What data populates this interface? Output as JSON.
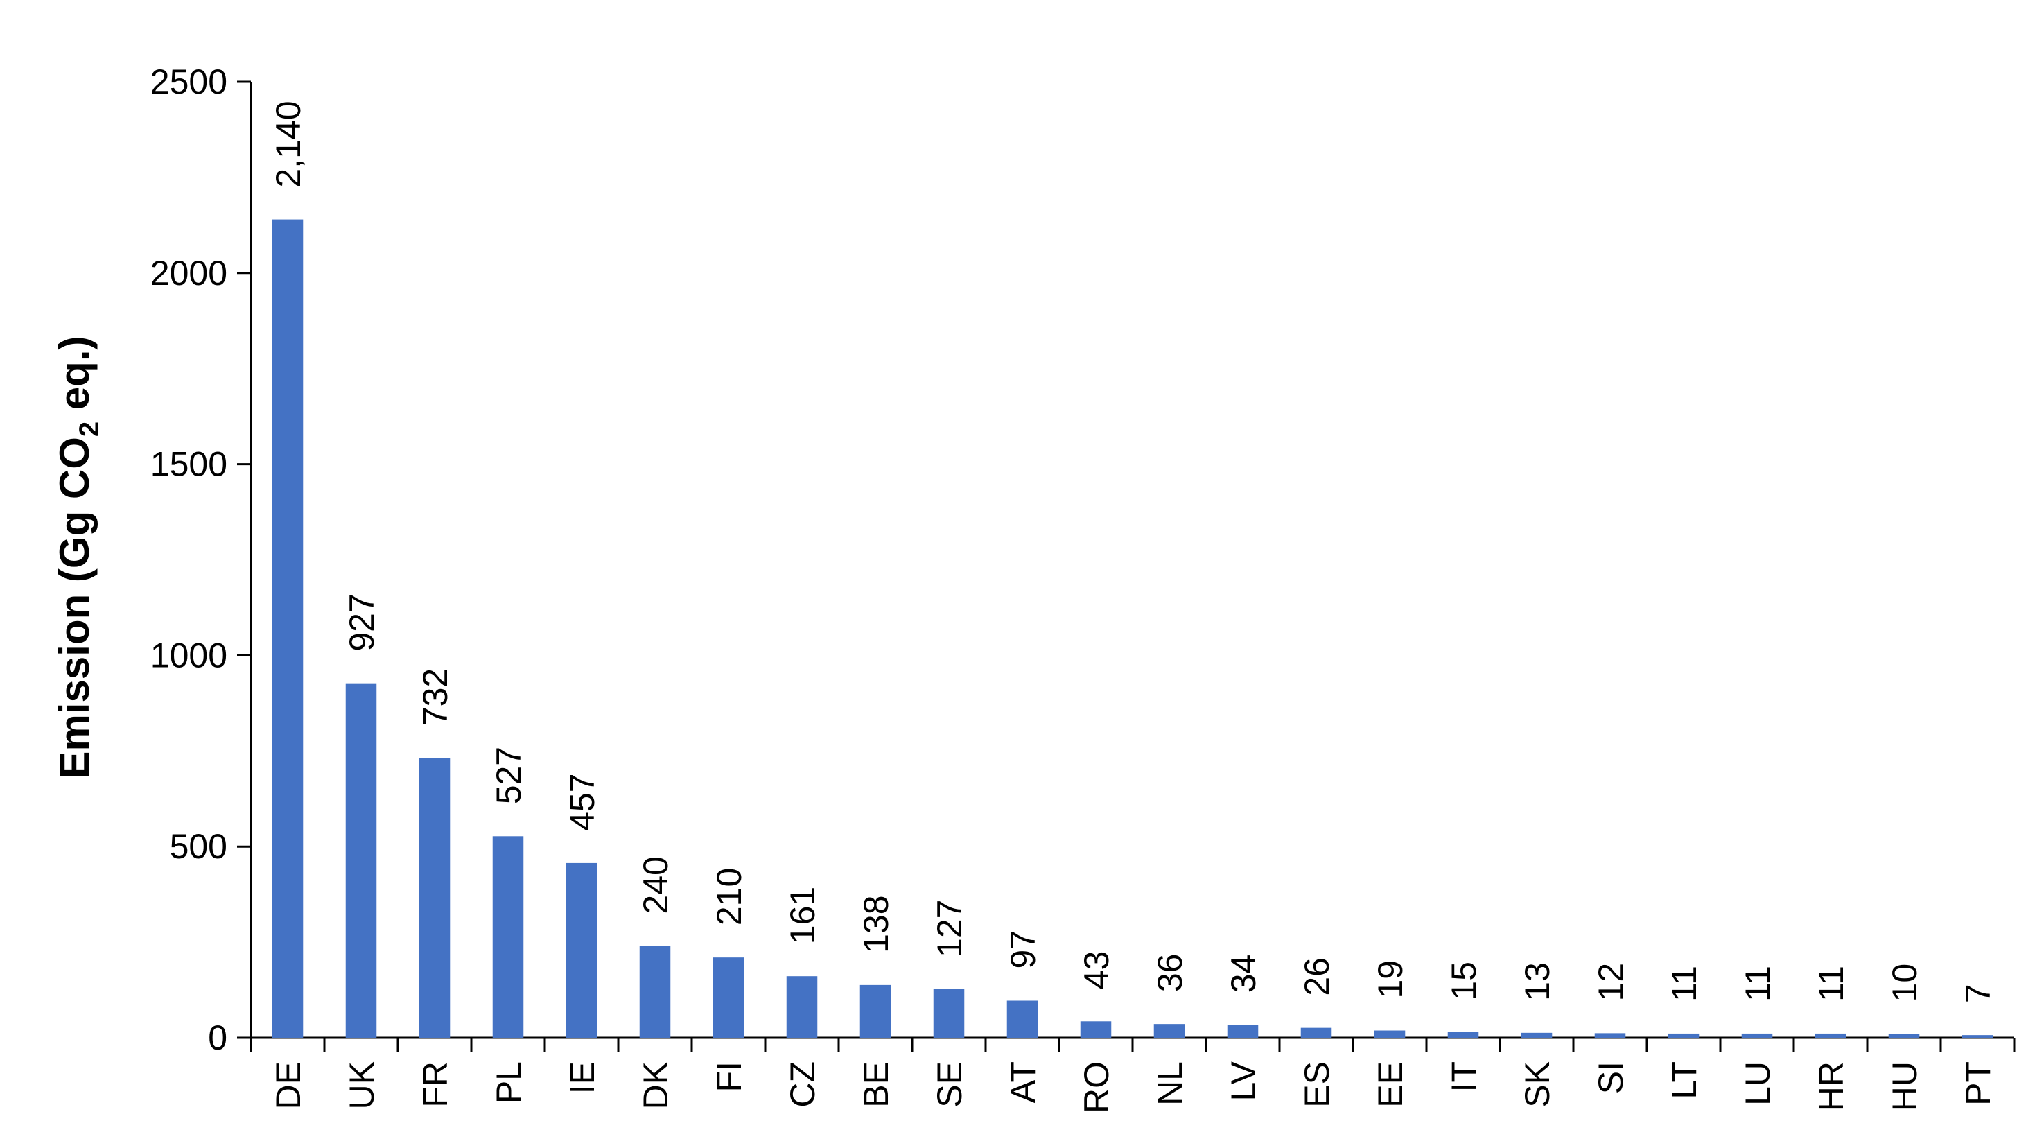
{
  "chart_data": {
    "type": "bar",
    "categories": [
      "DE",
      "UK",
      "FR",
      "PL",
      "IE",
      "DK",
      "FI",
      "CZ",
      "BE",
      "SE",
      "AT",
      "RO",
      "NL",
      "LV",
      "ES",
      "EE",
      "IT",
      "SK",
      "SI",
      "LT",
      "LU",
      "HR",
      "HU",
      "PT"
    ],
    "values": [
      2140,
      927,
      732,
      527,
      457,
      240,
      210,
      161,
      138,
      127,
      97,
      43,
      36,
      34,
      26,
      19,
      15,
      13,
      12,
      11,
      11,
      11,
      10,
      7
    ],
    "data_labels": [
      "2,140",
      "927",
      "732",
      "527",
      "457",
      "240",
      "210",
      "161",
      "138",
      "127",
      "97",
      "43",
      "36",
      "34",
      "26",
      "19",
      "15",
      "13",
      "12",
      "11",
      "11",
      "11",
      "10",
      "7"
    ],
    "ylabel_main": "Emission (Gg CO",
    "ylabel_sub": "2",
    "ylabel_end": " eq.)",
    "ylim": [
      0,
      2500
    ],
    "yticks": [
      0,
      500,
      1000,
      1500,
      2000,
      2500
    ],
    "bar_color": "#4472C4",
    "grid": false,
    "legend": "none"
  }
}
